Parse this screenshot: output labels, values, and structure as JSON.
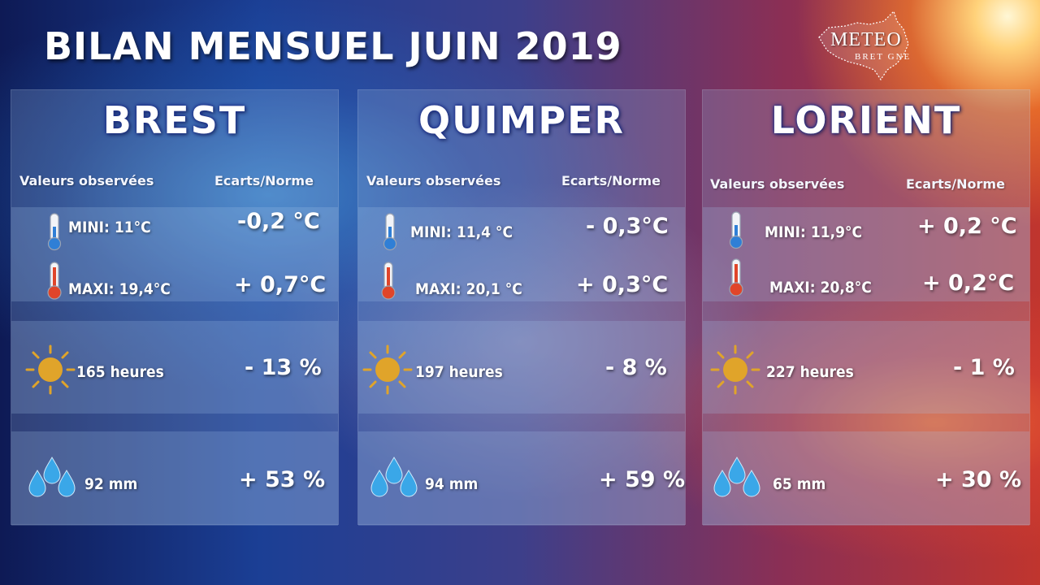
{
  "title": "BILAN MENSUEL JUIN 2019",
  "logo": {
    "line1": "METEO",
    "line2": "BRET GNE"
  },
  "headers": {
    "observed": "Valeurs observées",
    "deviation": "Ecarts/Norme"
  },
  "colors": {
    "sun": "#e0a42a",
    "drop": "#3aa7e8",
    "city_glow": "#1a2c8a"
  },
  "icons": [
    "thermometer-cold-icon",
    "thermometer-hot-icon",
    "sun-icon",
    "raindrops-icon"
  ],
  "cities": [
    {
      "name": "BREST",
      "mini": "MINI: 11°C",
      "mini_dev": "-0,2 °C",
      "maxi": "MAXI: 19,4°C",
      "maxi_dev": "+ 0,7°C",
      "sun": "165  heures",
      "sun_dev": "- 13 %",
      "rain": "92 mm",
      "rain_dev": "+ 53 %"
    },
    {
      "name": "QUIMPER",
      "mini": "MINI:  11,4 °C",
      "mini_dev": "- 0,3°C",
      "maxi": "MAXI: 20,1 °C",
      "maxi_dev": "+  0,3°C",
      "sun": "197 heures",
      "sun_dev": "- 8 %",
      "rain": "94  mm",
      "rain_dev": "+ 59 %"
    },
    {
      "name": "LORIENT",
      "mini": "MINI: 11,9°C",
      "mini_dev": "+ 0,2 °C",
      "maxi": "MAXI: 20,8°C",
      "maxi_dev": "+ 0,2°C",
      "sun": "227 heures",
      "sun_dev": "- 1 %",
      "rain": "65 mm",
      "rain_dev": "+ 30 %"
    }
  ]
}
